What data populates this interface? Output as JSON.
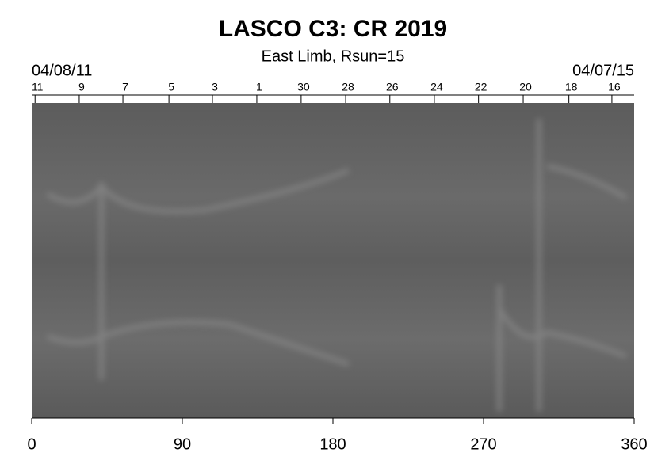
{
  "chart_data": {
    "type": "synoptic-map",
    "title": "LASCO C3: CR 2019",
    "subtitle": "East Limb, Rsun=15",
    "start_date": "04/08/11",
    "end_date": "04/07/15",
    "xlim": [
      0,
      360
    ],
    "xticks": [
      0,
      90,
      180,
      270,
      360
    ],
    "top_ticks": [
      {
        "value": 2,
        "label": "11"
      },
      {
        "value": 28.4,
        "label": "9"
      },
      {
        "value": 54.5,
        "label": "7"
      },
      {
        "value": 82,
        "label": "5"
      },
      {
        "value": 108,
        "label": "3"
      },
      {
        "value": 134.5,
        "label": "1"
      },
      {
        "value": 161,
        "label": "30"
      },
      {
        "value": 187.6,
        "label": "28"
      },
      {
        "value": 214,
        "label": "26"
      },
      {
        "value": 240.6,
        "label": "24"
      },
      {
        "value": 267,
        "label": "22"
      },
      {
        "value": 293.7,
        "label": "20"
      },
      {
        "value": 321,
        "label": "18"
      },
      {
        "value": 346.7,
        "label": "16"
      }
    ]
  }
}
